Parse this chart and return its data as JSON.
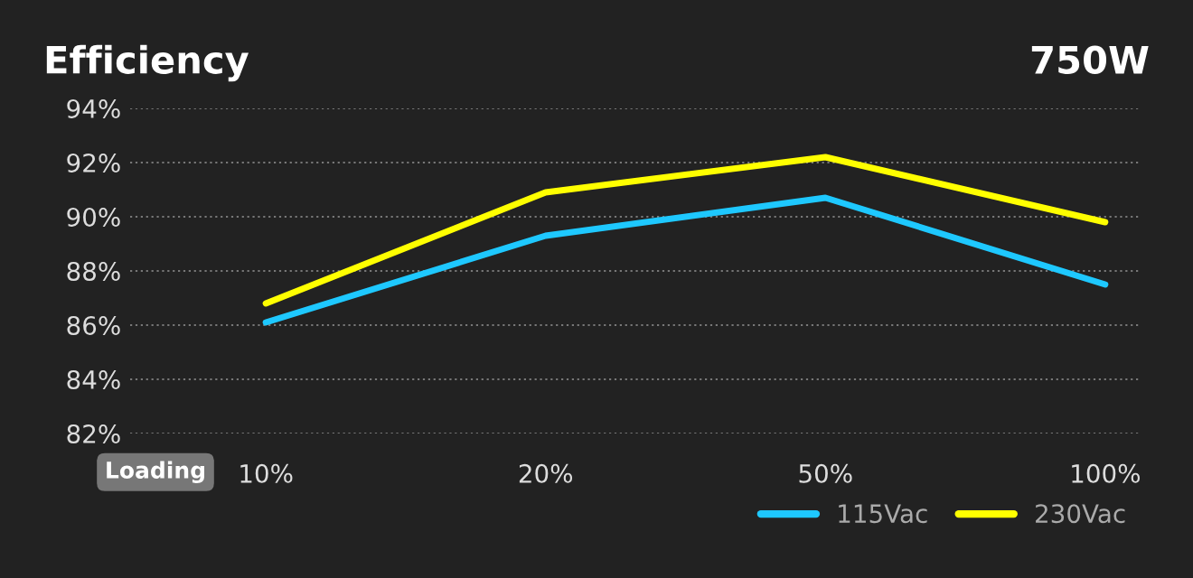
{
  "chart_data": {
    "type": "line",
    "title": "Efficiency",
    "subtitle": "750W",
    "xlabel": "Loading",
    "categories": [
      "10%",
      "20%",
      "50%",
      "100%"
    ],
    "series": [
      {
        "name": "115Vac",
        "color": "#1ec8ff",
        "values": [
          86.1,
          89.3,
          90.7,
          87.5
        ]
      },
      {
        "name": "230Vac",
        "color": "#ffff00",
        "values": [
          86.8,
          90.9,
          92.2,
          89.8
        ]
      }
    ],
    "ylim": [
      82,
      94
    ],
    "yticks": [
      {
        "value": 82,
        "label": "82%"
      },
      {
        "value": 84,
        "label": "84%"
      },
      {
        "value": 86,
        "label": "86%"
      },
      {
        "value": 88,
        "label": "88%"
      },
      {
        "value": 90,
        "label": "90%"
      },
      {
        "value": 92,
        "label": "92%"
      },
      {
        "value": 94,
        "label": "94%"
      }
    ],
    "grid": "y",
    "legend": "bottom right",
    "marker": "none",
    "line_style": "solid"
  }
}
